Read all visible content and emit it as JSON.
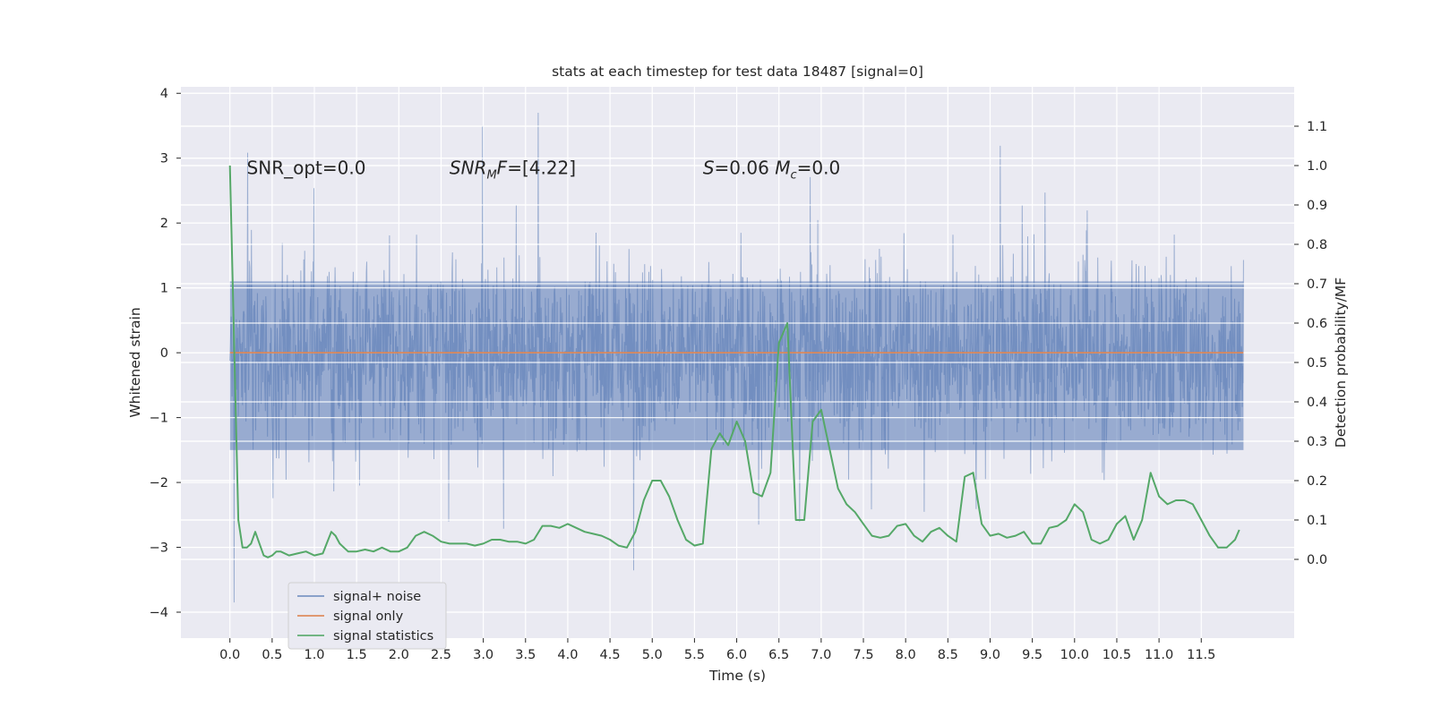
{
  "chart_data": {
    "type": "line",
    "title": "stats at each timestep for test data 18487 [signal=0]",
    "xlabel": "Time (s)",
    "ylabel": "Whitened strain",
    "ylabel_right": "Detection probability/MF",
    "xlim": [
      -0.58,
      12.6
    ],
    "ylim": [
      -4.4,
      4.1
    ],
    "ylim_right": [
      -0.2,
      1.2
    ],
    "x_ticks": [
      0.0,
      0.5,
      1.0,
      1.5,
      2.0,
      2.5,
      3.0,
      3.5,
      4.0,
      4.5,
      5.0,
      5.5,
      6.0,
      6.5,
      7.0,
      7.5,
      8.0,
      8.5,
      9.0,
      9.5,
      10.0,
      10.5,
      11.0,
      11.5
    ],
    "x_tick_labels": [
      "0.0",
      "0.5",
      "1.0",
      "1.5",
      "2.0",
      "2.5",
      "3.0",
      "3.5",
      "4.0",
      "4.5",
      "5.0",
      "5.5",
      "6.0",
      "6.5",
      "7.0",
      "7.5",
      "8.0",
      "8.5",
      "9.0",
      "9.5",
      "10.0",
      "10.5",
      "11.0",
      "11.5"
    ],
    "y_ticks": [
      -4,
      -3,
      -2,
      -1,
      0,
      1,
      2,
      3,
      4
    ],
    "y_tick_labels": [
      "−4",
      "−3",
      "−2",
      "−1",
      "0",
      "1",
      "2",
      "3",
      "4"
    ],
    "y_ticks_right": [
      0.0,
      0.1,
      0.2,
      0.3,
      0.4,
      0.5,
      0.6,
      0.7,
      0.8,
      0.9,
      1.0,
      1.1
    ],
    "y_tick_labels_right": [
      "0.0",
      "0.1",
      "0.2",
      "0.3",
      "0.4",
      "0.5",
      "0.6",
      "0.7",
      "0.8",
      "0.9",
      "1.0",
      "1.1"
    ],
    "grid": true,
    "legend_position": "bottom-left",
    "annotations": [
      {
        "id": "snr-opt",
        "text": "SNR_opt=0.0",
        "x": 0.2,
        "y": 2.85
      },
      {
        "id": "snr-mf",
        "text": "SNR_MF=[4.22]",
        "x": 2.6,
        "y": 2.85
      },
      {
        "id": "s-mc",
        "text": "S=0.06   M_c=0.0",
        "x": 5.6,
        "y": 2.85
      }
    ],
    "series": [
      {
        "name": "signal+ noise",
        "color": "#4c72b0",
        "axis": "left",
        "kind": "noise",
        "t_start": 0.0,
        "t_end": 12.0,
        "envelope_min": -4.1,
        "envelope_max": 3.7,
        "core_range": [
          -1.5,
          1.1
        ]
      },
      {
        "name": "signal only",
        "color": "#dd8452",
        "axis": "left",
        "x": [
          0.0,
          12.0
        ],
        "values": [
          0.0,
          0.0
        ]
      },
      {
        "name": "signal statistics",
        "color": "#55a868",
        "axis": "right",
        "x": [
          0.0,
          0.1,
          0.15,
          0.2,
          0.25,
          0.3,
          0.35,
          0.4,
          0.45,
          0.5,
          0.55,
          0.6,
          0.7,
          0.8,
          0.9,
          1.0,
          1.1,
          1.2,
          1.25,
          1.3,
          1.4,
          1.5,
          1.6,
          1.7,
          1.8,
          1.9,
          2.0,
          2.1,
          2.2,
          2.3,
          2.4,
          2.5,
          2.6,
          2.7,
          2.8,
          2.9,
          3.0,
          3.1,
          3.2,
          3.3,
          3.4,
          3.5,
          3.6,
          3.7,
          3.8,
          3.9,
          4.0,
          4.1,
          4.2,
          4.3,
          4.4,
          4.5,
          4.6,
          4.7,
          4.8,
          4.9,
          5.0,
          5.1,
          5.2,
          5.3,
          5.4,
          5.5,
          5.6,
          5.7,
          5.8,
          5.9,
          6.0,
          6.1,
          6.2,
          6.3,
          6.4,
          6.5,
          6.6,
          6.7,
          6.8,
          6.9,
          7.0,
          7.1,
          7.2,
          7.3,
          7.4,
          7.5,
          7.6,
          7.7,
          7.8,
          7.9,
          8.0,
          8.1,
          8.2,
          8.3,
          8.4,
          8.5,
          8.6,
          8.7,
          8.8,
          8.9,
          9.0,
          9.1,
          9.2,
          9.3,
          9.4,
          9.5,
          9.6,
          9.7,
          9.8,
          9.9,
          10.0,
          10.1,
          10.2,
          10.3,
          10.4,
          10.5,
          10.6,
          10.7,
          10.8,
          10.9,
          11.0,
          11.1,
          11.2,
          11.3,
          11.4,
          11.5,
          11.6,
          11.7,
          11.8,
          11.9,
          11.95
        ],
        "values": [
          1.0,
          0.1,
          0.03,
          0.03,
          0.04,
          0.07,
          0.04,
          0.01,
          0.005,
          0.01,
          0.02,
          0.02,
          0.01,
          0.015,
          0.02,
          0.01,
          0.015,
          0.07,
          0.06,
          0.04,
          0.02,
          0.02,
          0.025,
          0.02,
          0.03,
          0.02,
          0.02,
          0.03,
          0.06,
          0.07,
          0.06,
          0.045,
          0.04,
          0.04,
          0.04,
          0.035,
          0.04,
          0.05,
          0.05,
          0.045,
          0.045,
          0.04,
          0.05,
          0.085,
          0.085,
          0.08,
          0.09,
          0.08,
          0.07,
          0.065,
          0.06,
          0.05,
          0.035,
          0.03,
          0.07,
          0.15,
          0.2,
          0.2,
          0.16,
          0.1,
          0.05,
          0.035,
          0.04,
          0.28,
          0.32,
          0.29,
          0.35,
          0.3,
          0.17,
          0.16,
          0.22,
          0.55,
          0.6,
          0.1,
          0.1,
          0.35,
          0.38,
          0.28,
          0.18,
          0.14,
          0.12,
          0.09,
          0.06,
          0.055,
          0.06,
          0.085,
          0.09,
          0.06,
          0.045,
          0.07,
          0.08,
          0.06,
          0.045,
          0.21,
          0.22,
          0.09,
          0.06,
          0.065,
          0.055,
          0.06,
          0.07,
          0.04,
          0.04,
          0.08,
          0.085,
          0.1,
          0.14,
          0.12,
          0.05,
          0.04,
          0.05,
          0.09,
          0.11,
          0.05,
          0.1,
          0.22,
          0.16,
          0.14,
          0.15,
          0.15,
          0.14,
          0.1,
          0.06,
          0.03,
          0.03,
          0.05,
          0.075
        ]
      }
    ]
  }
}
